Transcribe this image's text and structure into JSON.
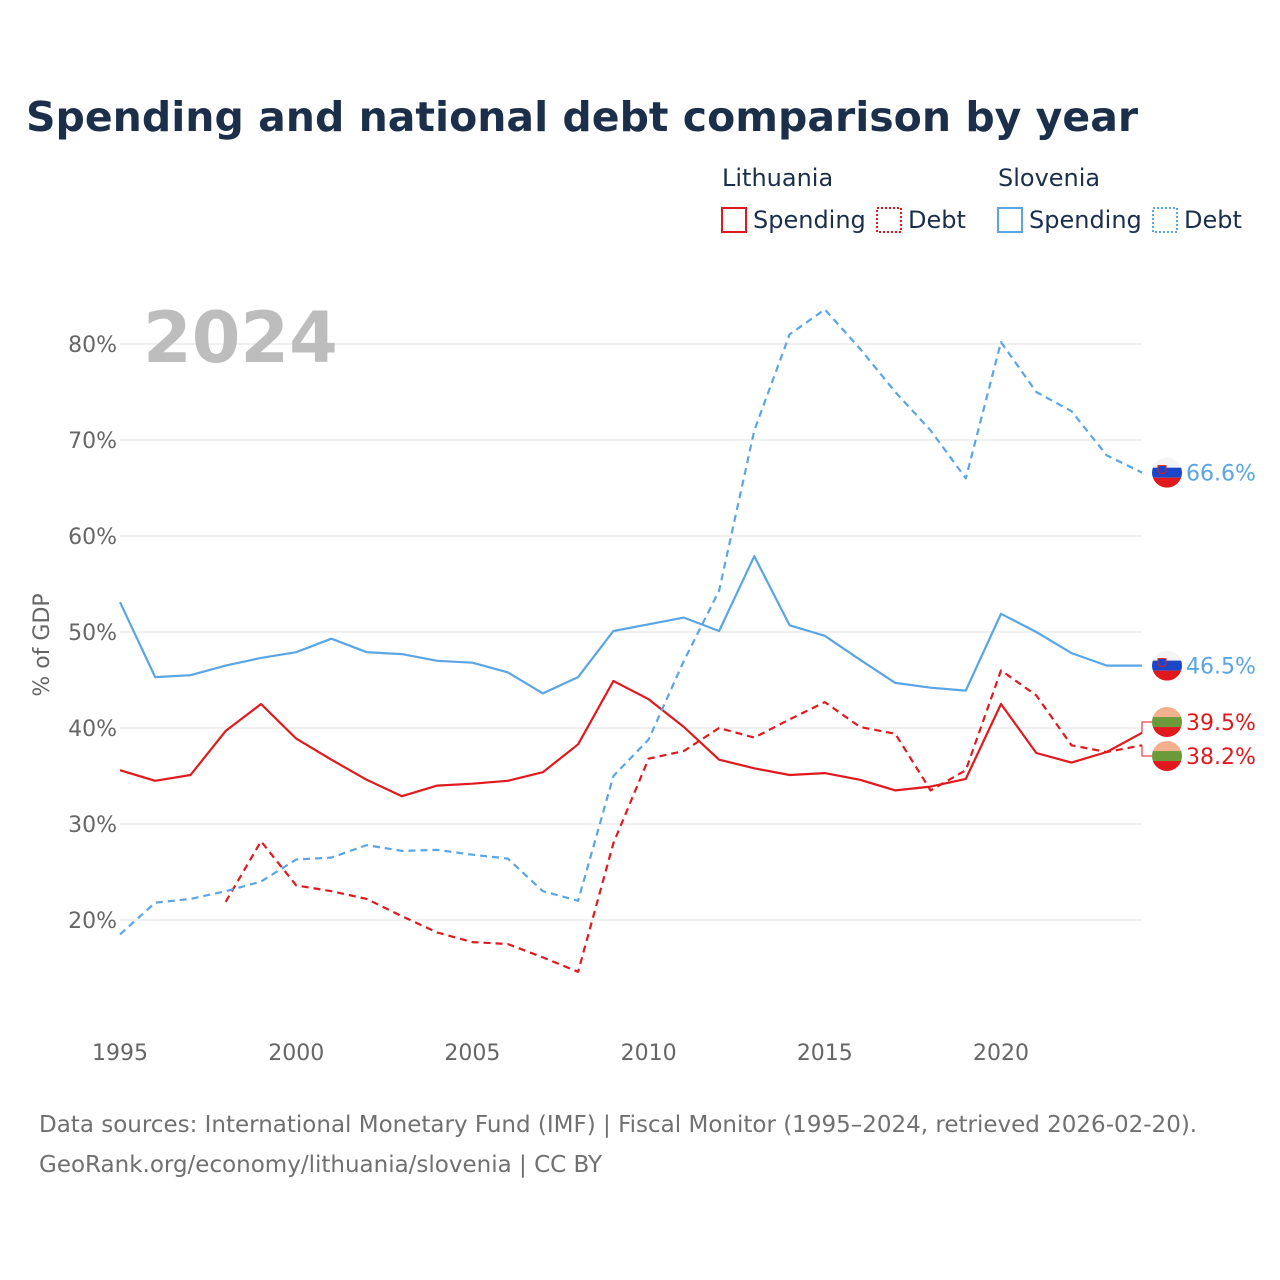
{
  "chart_data": {
    "type": "line",
    "title": "Spending and national debt comparison by year",
    "watermark_year": "2024",
    "ylabel": "% of GDP",
    "xlim": [
      1995,
      2024
    ],
    "ylim": [
      10,
      84
    ],
    "x_ticks": [
      1995,
      2000,
      2005,
      2010,
      2015,
      2020
    ],
    "y_ticks": [
      20,
      30,
      40,
      50,
      60,
      70,
      80
    ],
    "y_tick_labels": [
      "20%",
      "30%",
      "40%",
      "50%",
      "60%",
      "70%",
      "80%"
    ],
    "legend": {
      "groups": [
        {
          "country": "Lithuania",
          "items": [
            "Spending",
            "Debt"
          ],
          "color": "#e0191e"
        },
        {
          "country": "Slovenia",
          "items": [
            "Spending",
            "Debt"
          ],
          "color": "#5aa5e4"
        }
      ]
    },
    "series": [
      {
        "name": "Lithuania Spending",
        "country": "Lithuania",
        "metric": "Spending",
        "color": "#e0191e",
        "dash": "solid",
        "x": [
          1995,
          1996,
          1997,
          1998,
          1999,
          2000,
          2001,
          2002,
          2003,
          2004,
          2005,
          2006,
          2007,
          2008,
          2009,
          2010,
          2011,
          2012,
          2013,
          2014,
          2015,
          2016,
          2017,
          2018,
          2019,
          2020,
          2021,
          2022,
          2023,
          2024
        ],
        "values": [
          35.6,
          34.5,
          35.1,
          39.7,
          42.5,
          38.9,
          36.7,
          34.6,
          32.9,
          34.0,
          34.2,
          34.5,
          35.4,
          38.3,
          44.9,
          43.0,
          40.1,
          36.7,
          35.8,
          35.1,
          35.3,
          34.6,
          33.5,
          33.9,
          34.7,
          42.5,
          37.4,
          36.4,
          37.5,
          39.5
        ],
        "end_label": "39.5%"
      },
      {
        "name": "Lithuania Debt",
        "country": "Lithuania",
        "metric": "Debt",
        "color": "#e0191e",
        "dash": "dashed",
        "x": [
          1998,
          1999,
          2000,
          2001,
          2002,
          2003,
          2004,
          2005,
          2006,
          2007,
          2008,
          2009,
          2010,
          2011,
          2012,
          2013,
          2014,
          2015,
          2016,
          2017,
          2018,
          2019,
          2020,
          2021,
          2022,
          2023,
          2024
        ],
        "values": [
          21.9,
          28.2,
          23.6,
          23.0,
          22.2,
          20.4,
          18.7,
          17.7,
          17.5,
          16.1,
          14.6,
          28.0,
          36.8,
          37.6,
          40.0,
          39.0,
          40.9,
          42.7,
          40.1,
          39.4,
          33.5,
          35.6,
          46.0,
          43.4,
          38.2,
          37.5,
          38.2
        ],
        "end_label": "38.2%"
      },
      {
        "name": "Slovenia Spending",
        "country": "Slovenia",
        "metric": "Spending",
        "color": "#5aa5e4",
        "dash": "solid",
        "x": [
          1995,
          1996,
          1997,
          1998,
          1999,
          2000,
          2001,
          2002,
          2003,
          2004,
          2005,
          2006,
          2007,
          2008,
          2009,
          2010,
          2011,
          2012,
          2013,
          2014,
          2015,
          2016,
          2017,
          2018,
          2019,
          2020,
          2021,
          2022,
          2023,
          2024
        ],
        "values": [
          53.1,
          45.3,
          45.5,
          46.5,
          47.3,
          47.9,
          49.3,
          47.9,
          47.7,
          47.0,
          46.8,
          45.8,
          43.6,
          45.3,
          50.1,
          50.8,
          51.5,
          50.1,
          57.9,
          50.7,
          49.6,
          47.1,
          44.7,
          44.2,
          43.9,
          51.9,
          50.0,
          47.8,
          46.5,
          46.5
        ],
        "end_label": "46.5%"
      },
      {
        "name": "Slovenia Debt",
        "country": "Slovenia",
        "metric": "Debt",
        "color": "#5aa5e4",
        "dash": "dashed",
        "x": [
          1995,
          1996,
          1997,
          1998,
          1999,
          2000,
          2001,
          2002,
          2003,
          2004,
          2005,
          2006,
          2007,
          2008,
          2009,
          2010,
          2011,
          2012,
          2013,
          2014,
          2015,
          2016,
          2017,
          2018,
          2019,
          2020,
          2021,
          2022,
          2023,
          2024
        ],
        "values": [
          18.5,
          21.8,
          22.2,
          23.0,
          24.0,
          26.3,
          26.5,
          27.8,
          27.2,
          27.3,
          26.8,
          26.4,
          23.0,
          22.0,
          35.0,
          38.8,
          47.0,
          54.3,
          71.0,
          81.0,
          83.6,
          79.5,
          75.0,
          71.0,
          66.0,
          80.2,
          75.0,
          73.0,
          68.4,
          66.6
        ],
        "end_label": "66.6%"
      }
    ]
  },
  "footer": {
    "line1": "Data sources: International Monetary Fund (IMF) | Fiscal Monitor (1995–2024, retrieved 2026-02-20).",
    "line2": "GeoRank.org/economy/lithuania/slovenia | CC BY"
  }
}
